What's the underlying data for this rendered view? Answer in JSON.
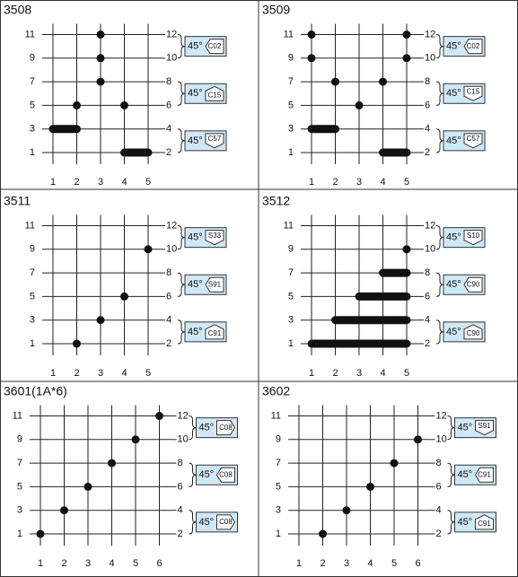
{
  "panels": [
    {
      "title": "3508",
      "columns": [
        1,
        2,
        3,
        4,
        5
      ],
      "left_labels": [
        1,
        3,
        5,
        7,
        9,
        11
      ],
      "right_labels": [
        2,
        4,
        6,
        8,
        10,
        12
      ],
      "boxes": [
        {
          "angle": "45°",
          "code": "C02"
        },
        {
          "angle": "45°",
          "code": "C15"
        },
        {
          "angle": "45°",
          "code": "C57"
        }
      ]
    },
    {
      "title": "3509",
      "columns": [
        1,
        2,
        3,
        4,
        5
      ],
      "left_labels": [
        1,
        3,
        5,
        7,
        9,
        11
      ],
      "right_labels": [
        2,
        4,
        6,
        8,
        10,
        12
      ],
      "boxes": [
        {
          "angle": "45°",
          "code": "C02"
        },
        {
          "angle": "45°",
          "code": "C15"
        },
        {
          "angle": "45°",
          "code": "C57"
        }
      ]
    },
    {
      "title": "3511",
      "columns": [
        1,
        2,
        3,
        4,
        5
      ],
      "left_labels": [
        1,
        3,
        5,
        7,
        9,
        11
      ],
      "right_labels": [
        2,
        4,
        6,
        8,
        10,
        12
      ],
      "boxes": [
        {
          "angle": "45°",
          "code": "S33"
        },
        {
          "angle": "45°",
          "code": "S91"
        },
        {
          "angle": "45°",
          "code": "C91"
        }
      ]
    },
    {
      "title": "3512",
      "columns": [
        1,
        2,
        3,
        4,
        5
      ],
      "left_labels": [
        1,
        3,
        5,
        7,
        9,
        11
      ],
      "right_labels": [
        2,
        4,
        6,
        8,
        10,
        12
      ],
      "boxes": [
        {
          "angle": "45°",
          "code": "S10"
        },
        {
          "angle": "45°",
          "code": "C90"
        },
        {
          "angle": "45°",
          "code": "C90"
        }
      ]
    },
    {
      "title": "3601(1A*6)",
      "columns": [
        1,
        2,
        3,
        4,
        5,
        6
      ],
      "left_labels": [
        1,
        3,
        5,
        7,
        9,
        11
      ],
      "right_labels": [
        2,
        4,
        6,
        8,
        10,
        12
      ],
      "boxes": [
        {
          "angle": "45°",
          "code": "C08"
        },
        {
          "angle": "45°",
          "code": "C08"
        },
        {
          "angle": "45°",
          "code": "C08"
        }
      ]
    },
    {
      "title": "3602",
      "columns": [
        1,
        2,
        3,
        4,
        5,
        6
      ],
      "left_labels": [
        1,
        3,
        5,
        7,
        9,
        11
      ],
      "right_labels": [
        2,
        4,
        6,
        8,
        10,
        12
      ],
      "boxes": [
        {
          "angle": "45°",
          "code": "S91"
        },
        {
          "angle": "45°",
          "code": "C91"
        },
        {
          "angle": "45°",
          "code": "C91"
        }
      ]
    }
  ]
}
